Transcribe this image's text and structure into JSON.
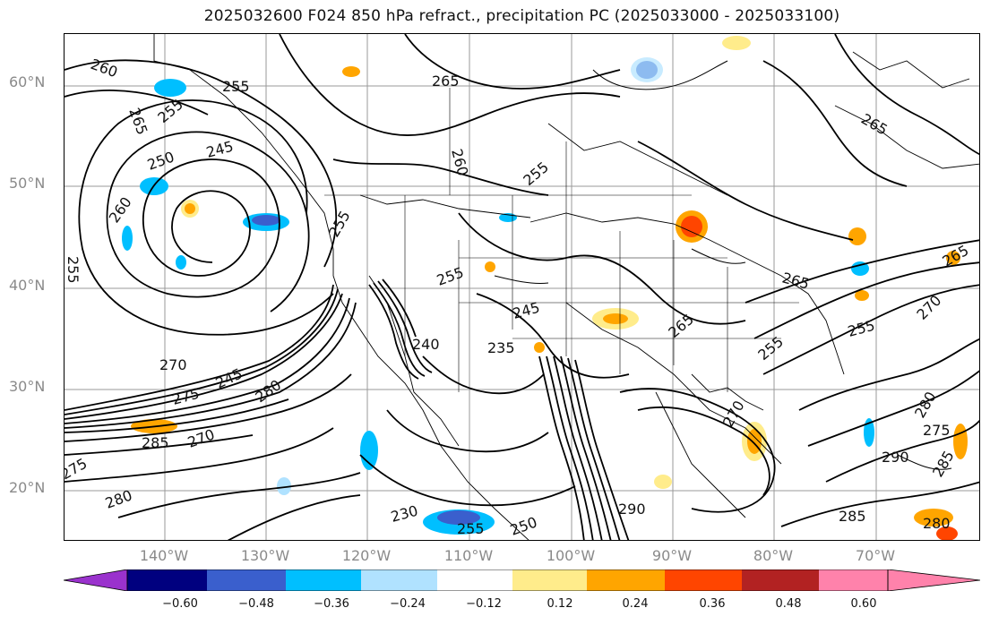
{
  "title": "2025032600 F024 850 hPa refract., precipitation PC (2025033000 - 2025033100)",
  "lat_labels": [
    "60°N",
    "50°N",
    "40°N",
    "30°N",
    "20°N"
  ],
  "lon_labels": [
    "140°W",
    "130°W",
    "120°W",
    "110°W",
    "100°W",
    "90°W",
    "80°W",
    "70°W"
  ],
  "colorbar": {
    "ticks": [
      "−0.60",
      "−0.48",
      "−0.36",
      "−0.24",
      "−0.12",
      "0.12",
      "0.24",
      "0.36",
      "0.48",
      "0.60"
    ],
    "colors": [
      "#9a32cd",
      "#00007f",
      "#3a5fcd",
      "#00bfff",
      "#b0e2ff",
      "#ffffff",
      "#ffec8b",
      "#ffa500",
      "#ff4500",
      "#b22222",
      "#ff82ab"
    ]
  },
  "contour_labels": [
    "260",
    "265",
    "255",
    "265",
    "255",
    "245",
    "250",
    "260",
    "255",
    "260",
    "255",
    "265",
    "265",
    "265",
    "255",
    "245",
    "235",
    "240",
    "270",
    "245",
    "280",
    "275",
    "285",
    "270",
    "275",
    "280",
    "230",
    "255",
    "250",
    "290",
    "285",
    "280",
    "290",
    "275",
    "285",
    "280",
    "270",
    "255",
    "265",
    "255",
    "255",
    "270"
  ]
}
